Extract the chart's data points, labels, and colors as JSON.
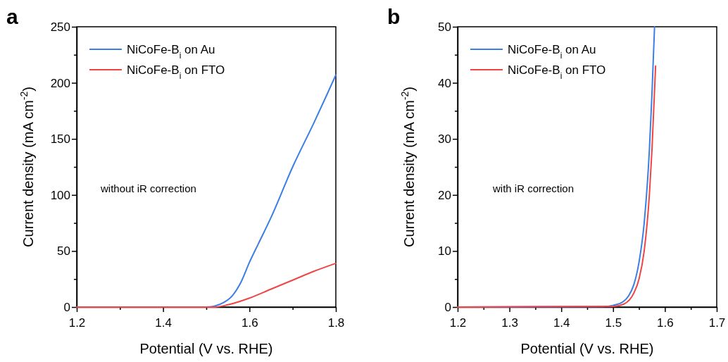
{
  "chart_data": [
    {
      "type": "line",
      "title": "a",
      "xlabel": "Potential (V vs. RHE)",
      "ylabel": "Current density (mA cm$^{-2}$)",
      "legend": "top left",
      "line_style": "solid",
      "marker": "none",
      "grid": false,
      "xlim": [
        1.2,
        1.8
      ],
      "xticks": [
        1.2,
        {
          "value": 1.3,
          "label": null
        },
        1.4,
        {
          "value": 1.5,
          "label": null
        },
        1.6,
        {
          "value": 1.7,
          "label": null
        },
        1.8
      ],
      "ylim": [
        0,
        250
      ],
      "yticks": [
        0,
        {
          "value": 25,
          "label": null
        },
        50,
        {
          "value": 75,
          "label": null
        },
        100,
        {
          "value": 125,
          "label": null
        },
        150,
        {
          "value": 175,
          "label": null
        },
        200,
        {
          "value": 225,
          "label": null
        },
        250
      ],
      "annotations": [
        "without iR correction"
      ],
      "series": [
        {
          "name": "NiCoFe-B$_{i}$ on Au",
          "color": "#3a7ee6",
          "x": [
            1.5,
            1.52,
            1.54,
            1.56,
            1.58,
            1.6,
            1.62,
            1.65,
            1.7,
            1.75,
            1.78,
            1.8
          ],
          "values": [
            0,
            1,
            4,
            10,
            22,
            40,
            56,
            80,
            125,
            165,
            190,
            207
          ]
        },
        {
          "name": "NiCoFe-B$_{i}$ on FTO",
          "color": "#f04545",
          "x": [
            1.2,
            1.52,
            1.55,
            1.6,
            1.65,
            1.7,
            1.75,
            1.8
          ],
          "values": [
            0,
            0,
            2,
            8,
            16,
            24,
            32,
            39
          ]
        }
      ]
    },
    {
      "type": "line",
      "title": "b",
      "xlabel": "Potential (V vs. RHE)",
      "ylabel": "Current density (mA cm$^{-2}$)",
      "legend": "top left",
      "line_style": "solid",
      "marker": "none",
      "grid": false,
      "xlim": [
        1.2,
        1.7
      ],
      "xticks": [
        1.2,
        {
          "value": 1.25,
          "label": null
        },
        1.3,
        {
          "value": 1.35,
          "label": null
        },
        1.4,
        {
          "value": 1.45,
          "label": null
        },
        1.5,
        {
          "value": 1.55,
          "label": null
        },
        1.6,
        {
          "value": 1.65,
          "label": null
        },
        1.7
      ],
      "ylim": [
        0,
        50
      ],
      "yticks": [
        0,
        {
          "value": 5,
          "label": null
        },
        10,
        {
          "value": 15,
          "label": null
        },
        20,
        {
          "value": 25,
          "label": null
        },
        30,
        {
          "value": 35,
          "label": null
        },
        40,
        {
          "value": 45,
          "label": null
        },
        50
      ],
      "annotations": [
        "with iR correction"
      ],
      "series": [
        {
          "name": "NiCoFe-B$_{i}$ on Au",
          "color": "#3a7ee6",
          "x": [
            1.2,
            1.48,
            1.5,
            1.52,
            1.53,
            1.54,
            1.55,
            1.56,
            1.57,
            1.575,
            1.58
          ],
          "values": [
            0,
            0.1,
            0.3,
            1,
            2,
            4,
            8,
            15,
            28,
            38,
            50
          ]
        },
        {
          "name": "NiCoFe-B$_{i}$ on FTO",
          "color": "#f04545",
          "x": [
            1.2,
            1.5,
            1.52,
            1.54,
            1.55,
            1.56,
            1.57,
            1.575,
            1.582
          ],
          "values": [
            0,
            0.1,
            0.5,
            2.5,
            5,
            10,
            20,
            28,
            43
          ]
        }
      ]
    }
  ]
}
